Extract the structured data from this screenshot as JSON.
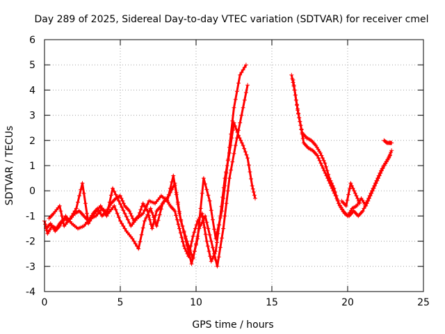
{
  "chart_data": {
    "type": "scatter",
    "title": "Day 289 of 2025, Sidereal Day-to-day VTEC variation (SDTVAR) for receiver cmel",
    "xlabel": "GPS time / hours",
    "ylabel": "SDTVAR / TECUs",
    "xlim": [
      0,
      25
    ],
    "ylim": [
      -4,
      6
    ],
    "x_ticks": [
      "0",
      "5",
      "10",
      "15",
      "20",
      "25"
    ],
    "y_ticks": [
      "-4",
      "-3",
      "-2",
      "-1",
      "0",
      "1",
      "2",
      "3",
      "4",
      "5",
      "6"
    ],
    "grid": true,
    "legend": "none",
    "marker": "plus",
    "color": "#ff0000",
    "series": [
      {
        "x": [
          0.0,
          0.2,
          0.5,
          0.8,
          1.0,
          1.3,
          1.6,
          2.0,
          2.3,
          2.6,
          2.9,
          3.2,
          3.5,
          3.8,
          4.1,
          4.4,
          4.7,
          5.0,
          5.3,
          5.6,
          5.9,
          6.2,
          6.5,
          6.8,
          7.1,
          7.4,
          7.7,
          8.0,
          8.3,
          8.6,
          8.9,
          9.2,
          9.5,
          9.8,
          10.1,
          10.4,
          10.7,
          11.0,
          11.3,
          11.6,
          11.9,
          12.2,
          12.5,
          12.8,
          13.1,
          13.4,
          13.7,
          13.9
        ],
        "y": [
          -1.2,
          -1.7,
          -1.4,
          -1.5,
          -1.3,
          -1.1,
          -1.2,
          -0.9,
          -0.8,
          -1.0,
          -1.2,
          -0.9,
          -0.7,
          -1.0,
          -0.8,
          -0.5,
          -0.3,
          -0.2,
          -0.6,
          -0.8,
          -1.2,
          -1.0,
          -0.5,
          -0.8,
          -1.5,
          -0.8,
          -0.6,
          -0.3,
          -0.6,
          -0.8,
          -1.5,
          -2.2,
          -2.6,
          -1.8,
          -1.2,
          -0.9,
          -2.0,
          -2.8,
          -2.4,
          -1.0,
          0.5,
          1.5,
          2.7,
          2.2,
          1.8,
          1.3,
          0.2,
          -0.3
        ]
      },
      {
        "x": [
          0.1,
          0.4,
          0.7,
          1.0,
          1.4,
          1.8,
          2.2,
          2.6,
          3.0,
          3.4,
          3.8,
          4.2,
          4.6,
          5.0,
          5.4,
          5.8,
          6.2,
          6.6,
          7.0,
          7.4,
          7.8,
          8.2,
          8.6,
          9.0,
          9.4,
          9.8,
          10.2,
          10.6,
          11.0,
          11.4,
          11.8,
          12.2,
          12.6,
          13.0,
          13.4
        ],
        "y": [
          -1.5,
          -1.3,
          -1.6,
          -1.4,
          -1.0,
          -1.3,
          -1.5,
          -1.4,
          -1.1,
          -1.0,
          -0.7,
          -0.9,
          -0.6,
          -1.2,
          -1.6,
          -1.9,
          -2.3,
          -1.2,
          -0.7,
          -1.4,
          -0.5,
          -0.2,
          0.3,
          -1.2,
          -2.0,
          -2.7,
          -1.5,
          -1.0,
          -2.0,
          -3.0,
          -1.5,
          0.5,
          1.8,
          3.0,
          4.2
        ]
      },
      {
        "x": [
          0.3,
          0.6,
          1.0,
          1.3,
          1.7,
          2.1,
          2.5,
          2.9,
          3.3,
          3.7,
          4.1,
          4.5,
          4.9,
          5.3,
          5.7,
          6.1,
          6.5,
          6.9,
          7.3,
          7.7,
          8.1,
          8.5,
          8.9,
          9.3,
          9.7,
          10.1,
          10.5,
          10.9,
          11.3,
          11.7,
          12.1,
          12.5,
          12.9,
          13.3
        ],
        "y": [
          -1.1,
          -0.9,
          -0.6,
          -1.4,
          -1.1,
          -0.7,
          0.3,
          -1.3,
          -0.9,
          -0.6,
          -1.0,
          0.1,
          -0.4,
          -0.9,
          -1.4,
          -1.1,
          -0.9,
          -0.4,
          -0.5,
          -0.2,
          -0.4,
          0.6,
          -0.9,
          -1.9,
          -2.9,
          -1.9,
          0.5,
          -0.4,
          -1.9,
          -0.8,
          1.2,
          3.3,
          4.6,
          5.0
        ]
      },
      {
        "x": [
          16.3,
          16.5,
          16.7,
          16.9,
          17.1,
          17.4,
          17.7,
          18.0,
          18.3,
          18.6,
          18.9,
          19.2,
          19.5,
          19.8,
          20.1,
          20.4,
          20.7,
          21.0,
          21.3,
          21.6,
          21.9,
          22.2,
          22.5,
          22.8
        ],
        "y": [
          4.6,
          4.0,
          3.2,
          2.6,
          1.9,
          1.7,
          1.6,
          1.4,
          1.0,
          0.6,
          0.2,
          -0.2,
          -0.6,
          -0.9,
          -1.0,
          -0.8,
          -1.0,
          -0.8,
          -0.4,
          0.0,
          0.4,
          0.8,
          1.1,
          1.4
        ]
      },
      {
        "x": [
          16.4,
          16.6,
          16.8,
          17.0,
          17.3,
          17.6,
          17.9,
          18.2,
          18.5,
          18.8,
          19.1,
          19.4,
          19.7,
          20.0,
          20.3,
          20.6,
          20.9,
          21.2,
          21.5,
          21.8,
          22.1,
          22.4,
          22.7,
          22.9
        ],
        "y": [
          4.4,
          3.6,
          2.9,
          2.3,
          2.1,
          2.0,
          1.8,
          1.5,
          1.1,
          0.5,
          0.1,
          -0.5,
          -0.8,
          -1.0,
          -0.7,
          -0.6,
          -0.3,
          -0.6,
          -0.2,
          0.2,
          0.6,
          1.0,
          1.3,
          1.6
        ]
      },
      {
        "x": [
          19.6,
          19.9,
          20.2,
          20.5,
          20.8
        ],
        "y": [
          -0.4,
          -0.6,
          0.3,
          -0.1,
          -0.5
        ]
      },
      {
        "x": [
          22.4,
          22.6,
          22.8,
          22.9
        ],
        "y": [
          2.0,
          1.9,
          1.9,
          1.9
        ]
      }
    ]
  }
}
